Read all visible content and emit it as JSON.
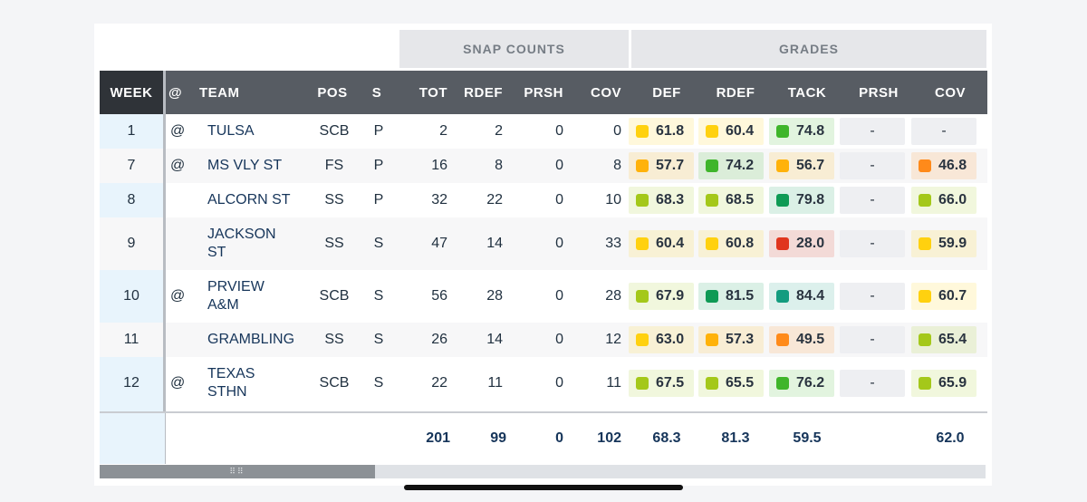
{
  "groups": {
    "snap_counts": "SNAP COUNTS",
    "grades": "GRADES"
  },
  "columns": [
    "WEEK",
    "@",
    "TEAM",
    "POS",
    "S",
    "TOT",
    "RDEF",
    "PRSH",
    "COV",
    "DEF",
    "RDEF",
    "TACK",
    "PRSH",
    "COV"
  ],
  "colors": {
    "header_bg": "#575c63",
    "week_header_bg": "#2f3338",
    "yellow": "#ffd10f",
    "amber": "#ffb20a",
    "orange": "#ff8a1a",
    "red": "#e0351e",
    "lime": "#a4c81a",
    "green": "#3fb52b",
    "dark_green": "#0f9a55",
    "teal": "#139c7f"
  },
  "rows": [
    {
      "week": "1",
      "at": "@",
      "team": [
        "TULSA"
      ],
      "pos": "SCB",
      "s": "P",
      "tot": "2",
      "rdef": "2",
      "prsh": "0",
      "cov": "0",
      "grades": [
        {
          "v": "61.8",
          "c": "yellow"
        },
        {
          "v": "60.4",
          "c": "yellow"
        },
        {
          "v": "74.8",
          "c": "green"
        },
        {
          "v": "-"
        },
        {
          "v": "-"
        }
      ]
    },
    {
      "week": "7",
      "at": "@",
      "team": [
        "MS VLY ST"
      ],
      "pos": "FS",
      "s": "P",
      "tot": "16",
      "rdef": "8",
      "prsh": "0",
      "cov": "8",
      "grades": [
        {
          "v": "57.7",
          "c": "amber"
        },
        {
          "v": "74.2",
          "c": "green"
        },
        {
          "v": "56.7",
          "c": "amber"
        },
        {
          "v": "-"
        },
        {
          "v": "46.8",
          "c": "orange"
        }
      ]
    },
    {
      "week": "8",
      "at": "",
      "team": [
        "ALCORN ST"
      ],
      "pos": "SS",
      "s": "P",
      "tot": "32",
      "rdef": "22",
      "prsh": "0",
      "cov": "10",
      "grades": [
        {
          "v": "68.3",
          "c": "lime"
        },
        {
          "v": "68.5",
          "c": "lime"
        },
        {
          "v": "79.8",
          "c": "dark_green"
        },
        {
          "v": "-"
        },
        {
          "v": "66.0",
          "c": "lime"
        }
      ]
    },
    {
      "week": "9",
      "at": "",
      "team": [
        "JACKSON",
        "ST"
      ],
      "pos": "SS",
      "s": "S",
      "tot": "47",
      "rdef": "14",
      "prsh": "0",
      "cov": "33",
      "grades": [
        {
          "v": "60.4",
          "c": "yellow"
        },
        {
          "v": "60.8",
          "c": "yellow"
        },
        {
          "v": "28.0",
          "c": "red"
        },
        {
          "v": "-"
        },
        {
          "v": "59.9",
          "c": "yellow"
        }
      ]
    },
    {
      "week": "10",
      "at": "@",
      "team": [
        "PRVIEW",
        "A&M"
      ],
      "pos": "SCB",
      "s": "S",
      "tot": "56",
      "rdef": "28",
      "prsh": "0",
      "cov": "28",
      "grades": [
        {
          "v": "67.9",
          "c": "lime"
        },
        {
          "v": "81.5",
          "c": "dark_green"
        },
        {
          "v": "84.4",
          "c": "teal"
        },
        {
          "v": "-"
        },
        {
          "v": "60.7",
          "c": "yellow"
        }
      ]
    },
    {
      "week": "11",
      "at": "",
      "team": [
        "GRAMBLING"
      ],
      "pos": "SS",
      "s": "S",
      "tot": "26",
      "rdef": "14",
      "prsh": "0",
      "cov": "12",
      "grades": [
        {
          "v": "63.0",
          "c": "yellow"
        },
        {
          "v": "57.3",
          "c": "amber"
        },
        {
          "v": "49.5",
          "c": "orange"
        },
        {
          "v": "-"
        },
        {
          "v": "65.4",
          "c": "lime"
        }
      ]
    },
    {
      "week": "12",
      "at": "@",
      "team": [
        "TEXAS",
        "STHN"
      ],
      "pos": "SCB",
      "s": "S",
      "tot": "22",
      "rdef": "11",
      "prsh": "0",
      "cov": "11",
      "grades": [
        {
          "v": "67.5",
          "c": "lime"
        },
        {
          "v": "65.5",
          "c": "lime"
        },
        {
          "v": "76.2",
          "c": "green"
        },
        {
          "v": "-"
        },
        {
          "v": "65.9",
          "c": "lime"
        }
      ]
    }
  ],
  "totals": {
    "tot": "201",
    "rdef": "99",
    "prsh": "0",
    "cov": "102",
    "def": "68.3",
    "g_rdef": "81.3",
    "tack": "59.5",
    "g_cov": "62.0"
  }
}
